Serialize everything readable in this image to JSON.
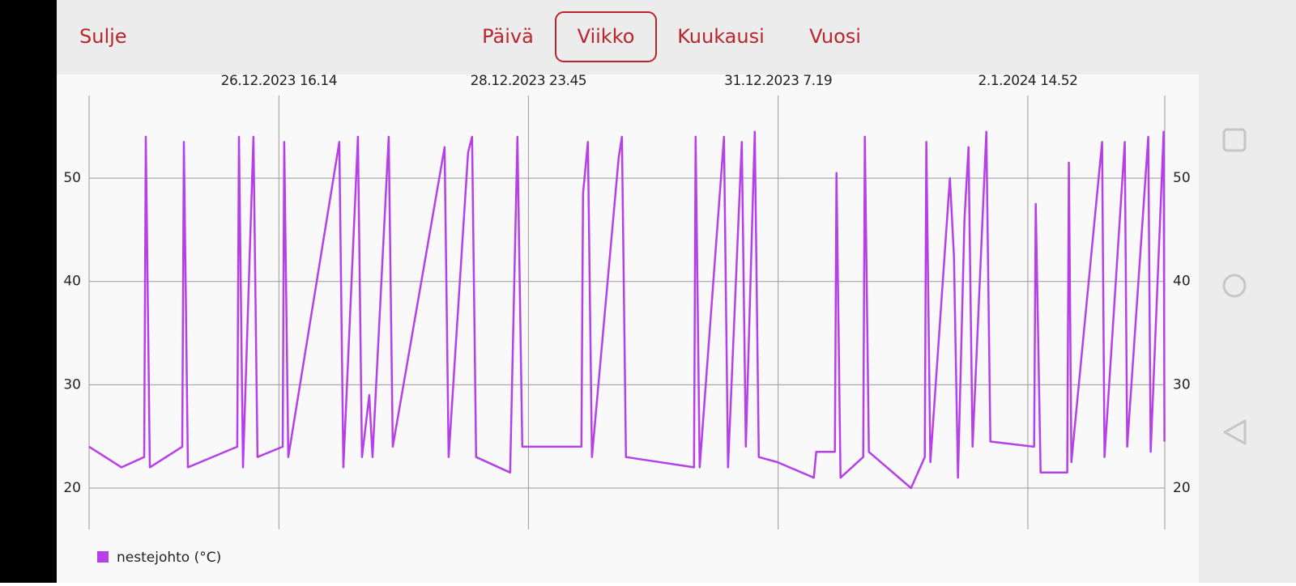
{
  "header": {
    "close": "Sulje",
    "tabs": [
      "Päivä",
      "Viikko",
      "Kuukausi",
      "Vuosi"
    ],
    "selected_tab": 1
  },
  "chart_data": {
    "type": "line",
    "xlim": [
      "2023-12-24T22:00",
      "2024-01-03T21:20"
    ],
    "xticks": [
      {
        "value": "2023-12-26T16:14",
        "label": "26.12.2023 16.14"
      },
      {
        "value": "2023-12-28T23:45",
        "label": "28.12.2023 23.45"
      },
      {
        "value": "2023-12-31T07:19",
        "label": "31.12.2023 7.19"
      },
      {
        "value": "2024-01-02T14:52",
        "label": "2.1.2024 14.52"
      }
    ],
    "ylim": [
      16,
      58
    ],
    "yticks": [
      20,
      30,
      40,
      50
    ],
    "grid": true,
    "x": [
      "2023-12-24T22:00",
      "2023-12-25T05:12",
      "2023-12-25T10:15",
      "2023-12-25T10:37",
      "2023-12-25T11:31",
      "2023-12-25T18:43",
      "2023-12-25T19:05",
      "2023-12-25T19:59",
      "2023-12-26T06:58",
      "2023-12-26T07:20",
      "2023-12-26T08:14",
      "2023-12-26T10:34",
      "2023-12-26T11:28",
      "2023-12-26T17:04",
      "2023-12-26T17:25",
      "2023-12-26T18:19",
      "2023-12-27T05:40",
      "2023-12-27T06:34",
      "2023-12-27T09:49",
      "2023-12-27T10:43",
      "2023-12-27T12:20",
      "2023-12-27T13:04",
      "2023-12-27T16:40",
      "2023-12-27T17:34",
      "2023-12-28T05:06",
      "2023-12-28T06:00",
      "2023-12-28T10:19",
      "2023-12-28T11:13",
      "2023-12-28T12:07",
      "2023-12-28T19:41",
      "2023-12-28T21:18",
      "2023-12-28T22:23",
      "2023-12-29T11:32",
      "2023-12-29T11:54",
      "2023-12-29T12:59",
      "2023-12-29T13:53",
      "2023-12-29T19:50",
      "2023-12-29T20:33",
      "2023-12-29T21:27",
      "2023-12-30T12:35",
      "2023-12-30T12:57",
      "2023-12-30T13:51",
      "2023-12-30T19:15",
      "2023-12-30T20:09",
      "2023-12-30T23:13",
      "2023-12-31T00:07",
      "2023-12-31T02:06",
      "2023-12-31T03:00",
      "2023-12-31T07:09",
      "2023-12-31T15:15",
      "2023-12-31T15:47",
      "2023-12-31T19:56",
      "2023-12-31T20:17",
      "2023-12-31T21:11",
      "2024-01-01T02:14",
      "2024-01-01T02:36",
      "2024-01-01T03:30",
      "2024-01-01T12:52",
      "2024-01-01T15:56",
      "2024-01-01T16:17",
      "2024-01-01T17:11",
      "2024-01-01T21:31",
      "2024-01-01T22:25",
      "2024-01-01T23:19",
      "2024-01-02T00:46",
      "2024-01-02T01:40",
      "2024-01-02T02:34",
      "2024-01-02T05:38",
      "2024-01-02T06:32",
      "2024-01-02T16:16",
      "2024-01-02T16:37",
      "2024-01-02T17:42",
      "2024-01-02T23:38",
      "2024-01-03T00:00",
      "2024-01-03T00:33",
      "2024-01-03T07:23",
      "2024-01-03T07:56",
      "2024-01-03T12:26",
      "2024-01-03T12:58",
      "2024-01-03T17:39",
      "2024-01-03T18:12",
      "2024-01-03T21:05",
      "2024-01-03T21:16"
    ],
    "series": [
      {
        "name": "nestejohto (°C)",
        "color": "#b540e8",
        "values": [
          24,
          22,
          23,
          54,
          22,
          24,
          53.5,
          22,
          24,
          54,
          22,
          54,
          23,
          24,
          53.5,
          23,
          53.5,
          22,
          54,
          23,
          29,
          23,
          54,
          24,
          53,
          23,
          52.5,
          54,
          23,
          21.5,
          54,
          24,
          24,
          48.5,
          53.5,
          23,
          52,
          54,
          23,
          22,
          54,
          22,
          54,
          22,
          53.5,
          24,
          54.5,
          23,
          22.5,
          21,
          23.5,
          23.5,
          50.5,
          21,
          23,
          54,
          23.5,
          20,
          23,
          53.5,
          22.5,
          50,
          42.5,
          21,
          46,
          53,
          24,
          54.5,
          24.5,
          24,
          47.5,
          21.5,
          21.5,
          51.5,
          22.5,
          53.5,
          23,
          53.5,
          24,
          54,
          23.5,
          54.5,
          24.5
        ]
      }
    ]
  }
}
